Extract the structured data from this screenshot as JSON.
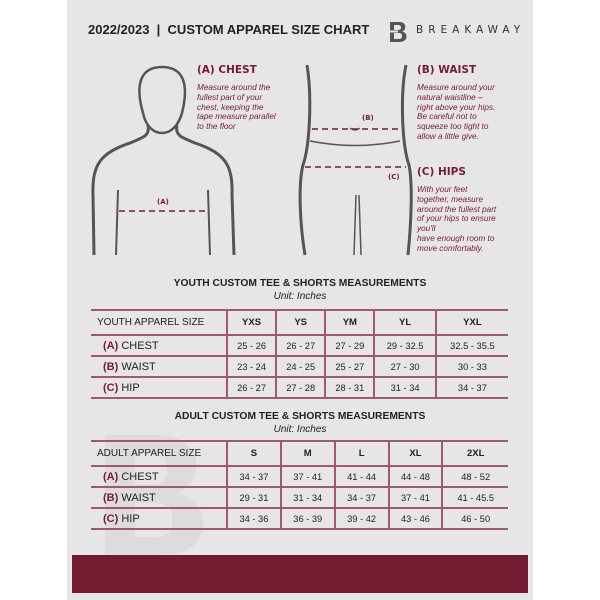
{
  "header": {
    "title": "2022/2023  |  CUSTOM APPAREL SIZE CHART",
    "brand": "BREAKAWAY",
    "logo_letter": "B"
  },
  "guide": {
    "chest": {
      "heading": "(A) CHEST",
      "marker": "(A)",
      "lines": [
        "Measure around the",
        "fullest part of your",
        "chest, keeping the",
        "tape measure parallel",
        "to the floor"
      ]
    },
    "waist": {
      "heading": "(B) WAIST",
      "marker": "(B)",
      "lines": [
        "Measure around your",
        "natural waistline –",
        "right above your hips.",
        "Be careful not to",
        "squeeze too tight to",
        "allow a little give."
      ]
    },
    "hips": {
      "heading": "(C) HIPS",
      "marker": "(C)",
      "lines": [
        "With your feet",
        "together, measure",
        "around the fullest part",
        "of your hips to ensure",
        "you'll",
        "have enough room to",
        "move comfortably."
      ]
    }
  },
  "youth": {
    "title": "YOUTH CUSTOM TEE & SHORTS MEASUREMENTS",
    "unit": "Unit: Inches",
    "header": [
      "YOUTH APPAREL SIZE",
      "YXS",
      "YS",
      "YM",
      "YL",
      "YXL"
    ],
    "rows": [
      {
        "tag": "(A)",
        "label": "CHEST",
        "values": [
          "25 - 26",
          "26 - 27",
          "27 - 29",
          "29 - 32.5",
          "32.5 - 35.5"
        ]
      },
      {
        "tag": "(B)",
        "label": "WAIST",
        "values": [
          "23 - 24",
          "24 - 25",
          "25 - 27",
          "27 - 30",
          "30 - 33"
        ]
      },
      {
        "tag": "(C)",
        "label": "HIP",
        "values": [
          "26 - 27",
          "27 - 28",
          "28 - 31",
          "31 - 34",
          "34 - 37"
        ]
      }
    ]
  },
  "adult": {
    "title": "ADULT CUSTOM TEE & SHORTS MEASUREMENTS",
    "unit": "Unit: Inches",
    "header": [
      "ADULT APPAREL SIZE",
      "S",
      "M",
      "L",
      "XL",
      "2XL"
    ],
    "rows": [
      {
        "tag": "(A)",
        "label": "CHEST",
        "values": [
          "34 - 37",
          "37 - 41",
          "41 - 44",
          "44 - 48",
          "48 - 52"
        ]
      },
      {
        "tag": "(B)",
        "label": "WAIST",
        "values": [
          "29 - 31",
          "31 - 34",
          "34 - 37",
          "37 - 41",
          "41 - 45.5"
        ]
      },
      {
        "tag": "(C)",
        "label": "HIP",
        "values": [
          "34 - 36",
          "36 - 39",
          "39 - 42",
          "43 - 46",
          "46 - 50"
        ]
      }
    ]
  },
  "colors": {
    "accent": "#731b30",
    "background": "#e6e6e8"
  }
}
